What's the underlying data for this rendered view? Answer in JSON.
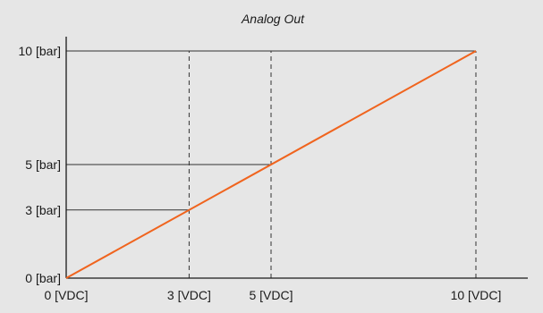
{
  "chart_data": {
    "type": "line",
    "title": "Analog Out",
    "x": [
      0,
      10
    ],
    "series": [
      {
        "values": [
          0,
          10
        ],
        "color": "#f0641e"
      }
    ],
    "xlim": [
      0,
      10
    ],
    "ylim": [
      0,
      10
    ],
    "x_ticks": [
      {
        "value": 0,
        "label": "0 [VDC]"
      },
      {
        "value": 3,
        "label": "3 [VDC]"
      },
      {
        "value": 5,
        "label": "5 [VDC]"
      },
      {
        "value": 10,
        "label": "10 [VDC]"
      }
    ],
    "y_ticks": [
      {
        "value": 0,
        "label": "0 [bar]"
      },
      {
        "value": 3,
        "label": "3 [bar]"
      },
      {
        "value": 5,
        "label": "5 [bar]"
      },
      {
        "value": 10,
        "label": "10 [bar]"
      }
    ],
    "reference_points": [
      {
        "x": 3,
        "y": 3
      },
      {
        "x": 5,
        "y": 5
      },
      {
        "x": 10,
        "y": 10
      }
    ],
    "background_color": "#e6e6e6",
    "axis_color": "#1a1a1a",
    "guide_color": "#333333"
  }
}
